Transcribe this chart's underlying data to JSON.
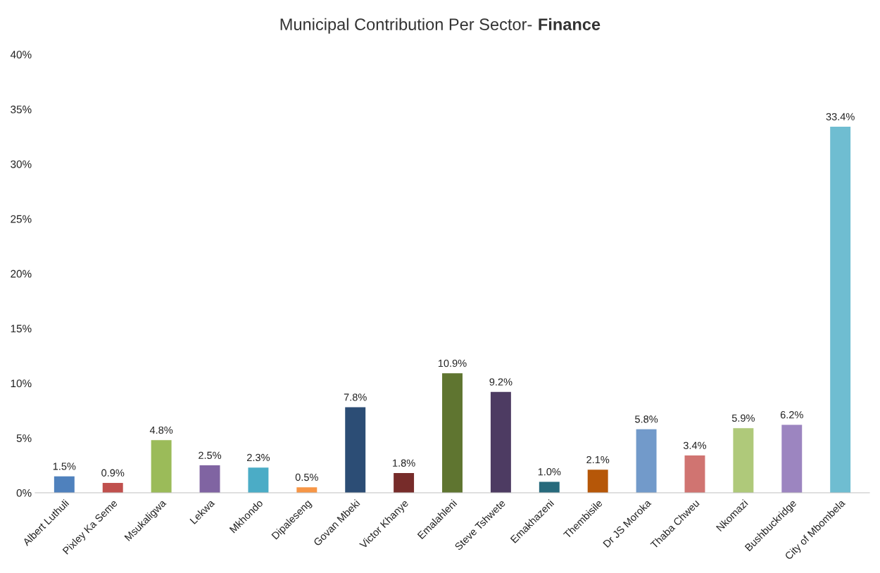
{
  "chart_data": {
    "type": "bar",
    "title": "Municipal Contribution Per Sector- Finance",
    "categories": [
      "Albert Luthuli",
      "Pixley Ka Seme",
      "Msukaligwa",
      "Lekwa",
      "Mkhondo",
      "Dipaleseng",
      "Govan Mbeki",
      "Victor Khanye",
      "Emalahleni",
      "Steve Tshwete",
      "Emakhazeni",
      "Thembisile",
      "Dr JS Moroka",
      "Thaba Chweu",
      "Nkomazi",
      "Bushbuckridge",
      "City of Mbombela"
    ],
    "values": [
      1.5,
      0.9,
      4.8,
      2.5,
      2.3,
      0.5,
      7.8,
      1.8,
      10.9,
      9.2,
      1.0,
      2.1,
      5.8,
      3.4,
      5.9,
      6.2,
      33.4
    ],
    "value_labels": [
      "1.5%",
      "0.9%",
      "4.8%",
      "2.5%",
      "2.3%",
      "0.5%",
      "7.8%",
      "1.8%",
      "10.9%",
      "9.2%",
      "1.0%",
      "2.1%",
      "5.8%",
      "3.4%",
      "5.9%",
      "6.2%",
      "33.4%"
    ],
    "colors": [
      "#4f81bd",
      "#c0504d",
      "#9bbb59",
      "#8064a2",
      "#4bacc6",
      "#f79646",
      "#2c4d75",
      "#772c2a",
      "#5f7530",
      "#4d3b62",
      "#276a7c",
      "#b65708",
      "#729aca",
      "#d07471",
      "#afc97a",
      "#9c85c0",
      "#6fbdd1"
    ],
    "ylim": [
      0,
      40
    ],
    "yticks": [
      {
        "value": 0,
        "label": "0%"
      },
      {
        "value": 5,
        "label": "5%"
      },
      {
        "value": 10,
        "label": "10%"
      },
      {
        "value": 15,
        "label": "15%"
      },
      {
        "value": 20,
        "label": "20%"
      },
      {
        "value": 25,
        "label": "25%"
      },
      {
        "value": 30,
        "label": "30%"
      },
      {
        "value": 35,
        "label": "35%"
      },
      {
        "value": 40,
        "label": "40%"
      }
    ],
    "grid": false,
    "legend": false
  }
}
